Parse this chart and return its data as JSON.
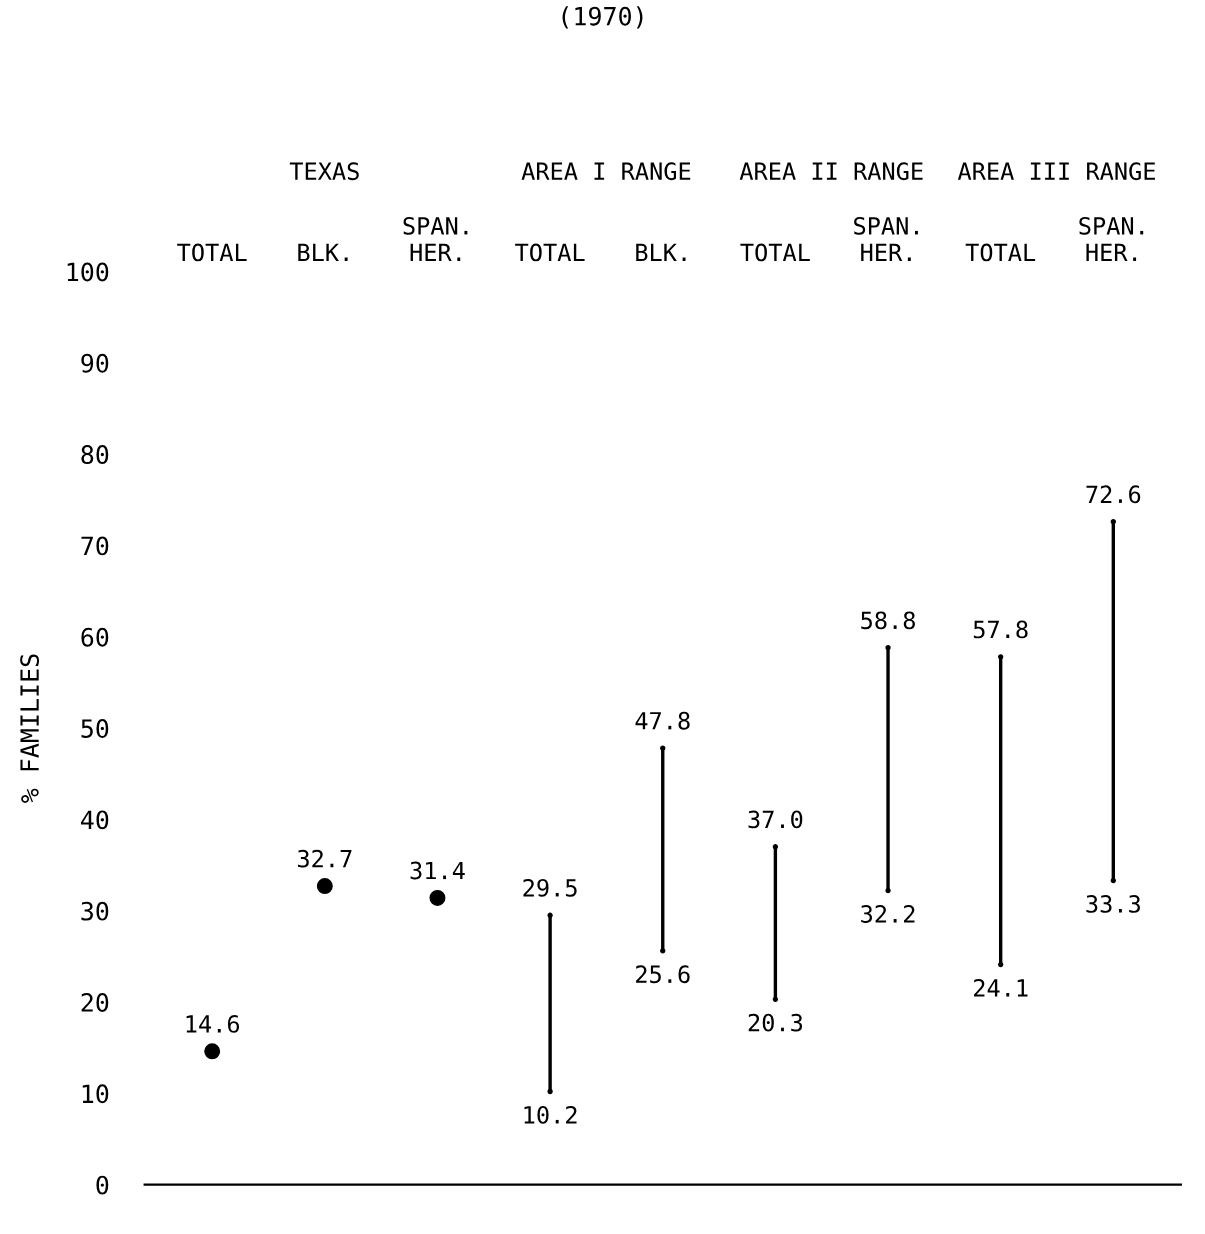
{
  "chart_data": {
    "type": "scatter",
    "title": "(1970)",
    "ylabel": "% FAMILIES",
    "categories": [
      "TOTAL",
      "BLK.",
      "SPAN.\nHER.",
      "TOTAL",
      "BLK.",
      "TOTAL",
      "SPAN.\nHER.",
      "TOTAL",
      "SPAN.\nHER."
    ],
    "annotations": [
      "TEXAS",
      "AREA I RANGE",
      "AREA II RANGE",
      "AREA III RANGE"
    ],
    "series": [
      {
        "color": "#000000",
        "marker": "circle",
        "values": [
          14.6,
          32.7,
          31.4,
          null,
          null,
          null,
          null,
          null,
          null
        ],
        "value_labels": [
          "14.6",
          "32.7",
          "31.4",
          null,
          null,
          null,
          null,
          null,
          null
        ]
      },
      {
        "type": "bar",
        "color": "#000000",
        "base": [
          null,
          null,
          null,
          10.2,
          25.6,
          20.3,
          32.2,
          24.1,
          33.3
        ],
        "values": [
          null,
          null,
          null,
          19.3,
          22.2,
          16.7,
          26.6,
          33.7,
          39.3
        ]
      },
      {
        "color": "#000000",
        "marker": "circle",
        "values": [
          null,
          null,
          null,
          29.5,
          47.8,
          37.0,
          58.8,
          57.8,
          72.6
        ],
        "value_labels": [
          null,
          null,
          null,
          "29.5",
          "47.8",
          "37.0",
          "58.8",
          "57.8",
          "72.6"
        ]
      },
      {
        "color": "#000000",
        "marker": "circle",
        "values": [
          null,
          null,
          null,
          10.2,
          25.6,
          20.3,
          32.2,
          24.1,
          33.3
        ],
        "value_labels": [
          null,
          null,
          null,
          "10.2",
          "25.6",
          "20.3",
          "32.2",
          "24.1",
          "33.3"
        ]
      }
    ],
    "ylim": [
      0,
      100
    ],
    "yticks": [
      0,
      10,
      20,
      30,
      40,
      50,
      60,
      70,
      80,
      90,
      100
    ],
    "grid": false,
    "legend": false
  }
}
